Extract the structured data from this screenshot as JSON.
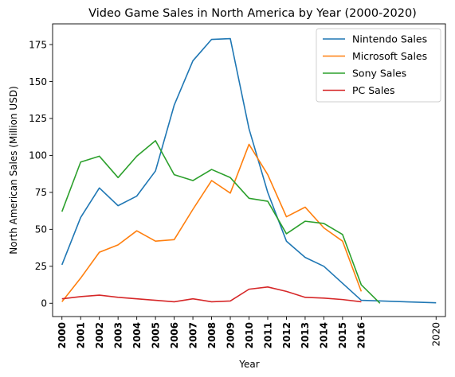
{
  "chart_data": {
    "type": "line",
    "title": "Video Game Sales in North America by Year (2000-2020)",
    "xlabel": "Year",
    "ylabel": "North American Sales (Million USD)",
    "xlim": [
      1999.5,
      2020.5
    ],
    "ylim": [
      -9,
      189
    ],
    "grid": false,
    "legend_position": "top-right",
    "xticks": [
      {
        "value": 2000,
        "label": "2000",
        "bold": true
      },
      {
        "value": 2001,
        "label": "2001",
        "bold": true
      },
      {
        "value": 2002,
        "label": "2002",
        "bold": true
      },
      {
        "value": 2003,
        "label": "2003",
        "bold": true
      },
      {
        "value": 2004,
        "label": "2004",
        "bold": true
      },
      {
        "value": 2005,
        "label": "2005",
        "bold": true
      },
      {
        "value": 2006,
        "label": "2006",
        "bold": true
      },
      {
        "value": 2007,
        "label": "2007",
        "bold": true
      },
      {
        "value": 2008,
        "label": "2008",
        "bold": true
      },
      {
        "value": 2009,
        "label": "2009",
        "bold": true
      },
      {
        "value": 2010,
        "label": "2010",
        "bold": true
      },
      {
        "value": 2011,
        "label": "2011",
        "bold": true
      },
      {
        "value": 2012,
        "label": "2012",
        "bold": true
      },
      {
        "value": 2013,
        "label": "2013",
        "bold": true
      },
      {
        "value": 2014,
        "label": "2014",
        "bold": true
      },
      {
        "value": 2015,
        "label": "2015",
        "bold": true
      },
      {
        "value": 2016,
        "label": "2016",
        "bold": true
      },
      {
        "value": 2020,
        "label": "2020",
        "bold": false
      }
    ],
    "yticks": [
      {
        "value": 0,
        "label": "0"
      },
      {
        "value": 25,
        "label": "25"
      },
      {
        "value": 50,
        "label": "50"
      },
      {
        "value": 75,
        "label": "75"
      },
      {
        "value": 100,
        "label": "100"
      },
      {
        "value": 125,
        "label": "125"
      },
      {
        "value": 150,
        "label": "150"
      },
      {
        "value": 175,
        "label": "175"
      }
    ],
    "series": [
      {
        "name": "Nintendo Sales",
        "color": "#1f77b4",
        "x": [
          2000,
          2001,
          2002,
          2003,
          2004,
          2005,
          2006,
          2007,
          2008,
          2009,
          2010,
          2011,
          2012,
          2013,
          2014,
          2015,
          2016,
          2020
        ],
        "y": [
          26,
          58,
          78,
          66,
          72.5,
          89.5,
          134,
          164,
          178.5,
          179,
          118,
          75,
          42,
          31,
          25,
          13.5,
          2,
          0.3
        ]
      },
      {
        "name": "Microsoft Sales",
        "color": "#ff7f0e",
        "x": [
          2000,
          2001,
          2002,
          2003,
          2004,
          2005,
          2006,
          2007,
          2008,
          2009,
          2010,
          2011,
          2012,
          2013,
          2014,
          2015,
          2016
        ],
        "y": [
          1,
          17,
          34.5,
          39.5,
          49,
          42,
          43,
          63.5,
          83,
          74.5,
          107.5,
          87,
          58.5,
          65,
          51,
          42,
          8
        ]
      },
      {
        "name": "Sony Sales",
        "color": "#2ca02c",
        "x": [
          2000,
          2001,
          2002,
          2003,
          2004,
          2005,
          2006,
          2007,
          2008,
          2009,
          2010,
          2011,
          2012,
          2013,
          2014,
          2015,
          2016,
          2017
        ],
        "y": [
          62,
          95.5,
          99.5,
          85,
          99.5,
          110,
          87,
          83,
          90.5,
          85,
          71,
          69,
          47,
          55.5,
          54,
          46.5,
          12.5,
          0
        ]
      },
      {
        "name": "PC Sales",
        "color": "#d62728",
        "x": [
          2000,
          2001,
          2002,
          2003,
          2004,
          2005,
          2006,
          2007,
          2008,
          2009,
          2010,
          2011,
          2012,
          2013,
          2014,
          2015,
          2016
        ],
        "y": [
          3,
          4.5,
          5.5,
          4,
          3,
          2,
          1,
          3,
          1,
          1.5,
          9.5,
          11,
          8,
          4,
          3.5,
          2.5,
          1
        ]
      }
    ]
  }
}
